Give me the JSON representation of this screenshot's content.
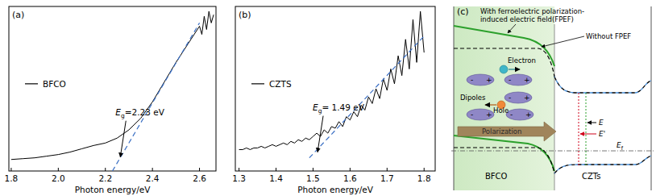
{
  "chart_data": [
    {
      "type": "line",
      "title": "(a)",
      "x_label": "Photon energy/eV",
      "xlim": [
        1.79,
        2.67
      ],
      "ylim": [
        0,
        1
      ],
      "xticks": [
        {
          "value": 1.8,
          "label": "1.8"
        },
        {
          "value": 2.0,
          "label": "2.0"
        },
        {
          "value": 2.2,
          "label": "2.2"
        },
        {
          "value": 2.4,
          "label": "2.4"
        },
        {
          "value": 2.6,
          "label": "2.6"
        }
      ],
      "tick_labels": "x",
      "legend": "left",
      "series": [
        {
          "name": "BFCO",
          "color": "#000000",
          "line_style": "solid",
          "x": [
            1.8,
            1.85,
            1.9,
            1.95,
            2.0,
            2.05,
            2.1,
            2.15,
            2.2,
            2.25,
            2.3,
            2.35,
            2.4,
            2.45,
            2.5,
            2.55,
            2.6,
            2.61,
            2.62,
            2.63,
            2.64,
            2.65,
            2.66
          ],
          "values": [
            0.07,
            0.075,
            0.08,
            0.09,
            0.1,
            0.115,
            0.135,
            0.155,
            0.17,
            0.2,
            0.25,
            0.32,
            0.42,
            0.54,
            0.66,
            0.77,
            0.88,
            0.83,
            0.94,
            0.86,
            0.97,
            0.9,
            0.95
          ]
        },
        {
          "color": "#3a6fc4",
          "line_style": "dashed",
          "x": [
            2.23,
            2.6
          ],
          "values": [
            0,
            0.9
          ]
        }
      ],
      "annotations": [
        {
          "symbol": "E",
          "subscript": "g",
          "text": "=2.23 eV",
          "x": 2.26,
          "y": 0.07
        }
      ]
    },
    {
      "type": "line",
      "title": "(b)",
      "x_label": "Photon energy/eV",
      "xlim": [
        1.29,
        1.83
      ],
      "ylim": [
        0,
        1
      ],
      "xticks": [
        {
          "value": 1.3,
          "label": "1.3"
        },
        {
          "value": 1.4,
          "label": "1.4"
        },
        {
          "value": 1.5,
          "label": "1.5"
        },
        {
          "value": 1.6,
          "label": "1.6"
        },
        {
          "value": 1.7,
          "label": "1.7"
        },
        {
          "value": 1.8,
          "label": "1.8"
        }
      ],
      "tick_labels": "x",
      "legend": "left",
      "series": [
        {
          "name": "CZTS",
          "color": "#000000",
          "line_style": "solid",
          "x": [
            1.3,
            1.31,
            1.32,
            1.33,
            1.34,
            1.35,
            1.36,
            1.37,
            1.38,
            1.39,
            1.4,
            1.41,
            1.42,
            1.43,
            1.44,
            1.45,
            1.46,
            1.47,
            1.48,
            1.49,
            1.5,
            1.51,
            1.52,
            1.53,
            1.54,
            1.55,
            1.56,
            1.57,
            1.58,
            1.59,
            1.6,
            1.61,
            1.62,
            1.63,
            1.64,
            1.65,
            1.66,
            1.67,
            1.68,
            1.69,
            1.7,
            1.71,
            1.72,
            1.73,
            1.74,
            1.75,
            1.76,
            1.77,
            1.78,
            1.79,
            1.8
          ],
          "values": [
            0.13,
            0.13,
            0.14,
            0.13,
            0.14,
            0.14,
            0.15,
            0.14,
            0.15,
            0.16,
            0.15,
            0.16,
            0.17,
            0.16,
            0.18,
            0.17,
            0.19,
            0.18,
            0.2,
            0.19,
            0.21,
            0.23,
            0.21,
            0.25,
            0.23,
            0.27,
            0.26,
            0.3,
            0.27,
            0.33,
            0.31,
            0.36,
            0.33,
            0.4,
            0.37,
            0.45,
            0.41,
            0.5,
            0.44,
            0.56,
            0.49,
            0.62,
            0.53,
            0.7,
            0.58,
            0.8,
            0.62,
            0.92,
            0.66,
            0.97,
            0.72
          ]
        },
        {
          "color": "#3a6fc4",
          "line_style": "dashed",
          "x": [
            1.49,
            1.8
          ],
          "values": [
            0.08,
            0.82
          ]
        }
      ],
      "annotations": [
        {
          "symbol": "E",
          "subscript": "g",
          "text": "= 1.49 eV",
          "x": 1.51,
          "y": 0.1
        }
      ]
    }
  ],
  "diagram": {
    "panel_label": "(c)",
    "with_fpef": [
      "With ferroelectric polarization-",
      "induced electric field(FPEF)"
    ],
    "without_fpef": "Without FPEF",
    "electron": "Electron",
    "dipoles": "Dipoles",
    "dipole_charges": [
      "-",
      "+"
    ],
    "hole": "Hole",
    "polarization": "Polarization",
    "left_material": "BFCO",
    "right_material": "CZTs",
    "energy_labels": [
      {
        "symbol": "E"
      },
      {
        "symbol": "E'"
      },
      {
        "symbol": "E",
        "subscript": "f"
      }
    ]
  }
}
